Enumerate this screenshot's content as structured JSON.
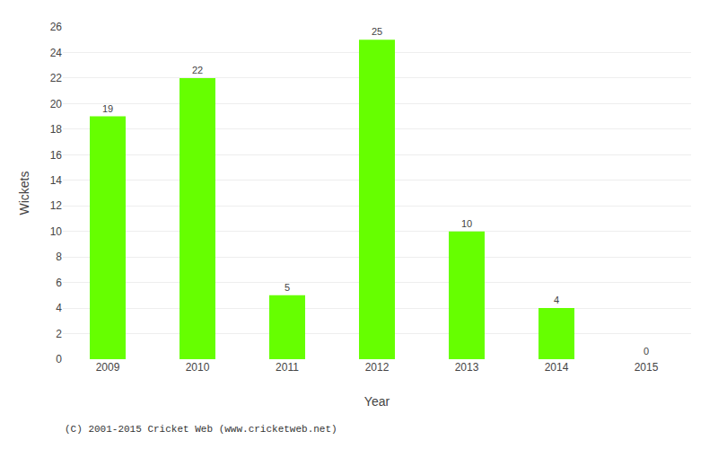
{
  "chart_data": {
    "type": "bar",
    "categories": [
      "2009",
      "2010",
      "2011",
      "2012",
      "2013",
      "2014",
      "2015"
    ],
    "values": [
      19,
      22,
      5,
      25,
      10,
      4,
      0
    ],
    "color": "#66ff00",
    "xlabel": "Year",
    "ylabel": "Wickets",
    "ylim": [
      0,
      26
    ],
    "yticks": [
      0,
      2,
      4,
      6,
      8,
      10,
      12,
      14,
      16,
      18,
      20,
      22,
      24,
      26
    ],
    "grid": true,
    "data_labels": true,
    "annotations": [
      "(C) 2001-2015 Cricket Web (www.cricketweb.net)"
    ]
  }
}
